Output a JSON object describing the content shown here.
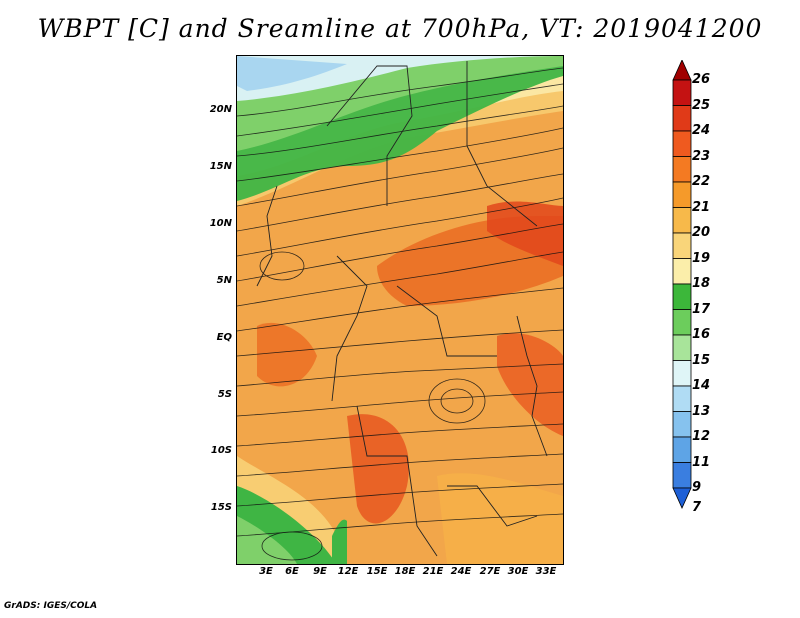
{
  "title": "WBPT [C] and Sreamline at 700hPa, VT: 2019041200",
  "map": {
    "lat_labels": [
      "20N",
      "15N",
      "10N",
      "5N",
      "EQ",
      "5S",
      "10S",
      "15S"
    ],
    "lon_labels": [
      "3E",
      "6E",
      "9E",
      "12E",
      "15E",
      "18E",
      "21E",
      "24E",
      "27E",
      "30E",
      "33E"
    ]
  },
  "colorbar": {
    "labels": [
      "26",
      "25",
      "24",
      "23",
      "22",
      "21",
      "20",
      "19",
      "18",
      "17",
      "16",
      "15",
      "14",
      "13",
      "12",
      "11",
      "9",
      "7"
    ],
    "colors": [
      "#a00000",
      "#c41212",
      "#e03a18",
      "#ef5a1f",
      "#f47a22",
      "#f59a2a",
      "#f7b94a",
      "#f9d57a",
      "#fbeeaa",
      "#3cb73a",
      "#6ccd5c",
      "#a8e49a",
      "#dff5f7",
      "#b0dcf4",
      "#86c2ee",
      "#5ea4e6",
      "#3a7ee0",
      "#1d5fd6"
    ]
  },
  "credit": "GrADS: IGES/COLA"
}
